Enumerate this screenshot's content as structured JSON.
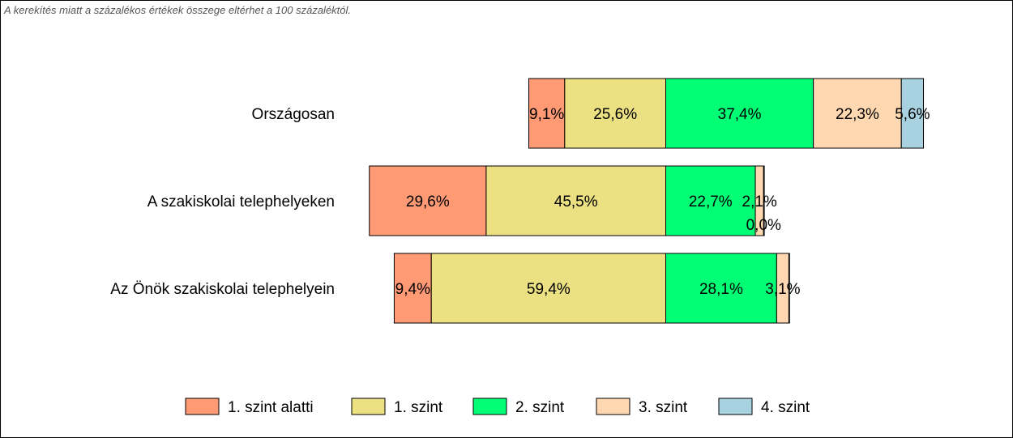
{
  "note": "A kerekítés miatt a  százalékos értékek összege eltérhet a 100 százaléktól.",
  "colors": {
    "segments": [
      "#FF9A75",
      "#EBE082",
      "#00FF74",
      "#FFD7B0",
      "#A8D2E0"
    ],
    "border": "#000000"
  },
  "chart_data": {
    "type": "bar",
    "orientation": "horizontal",
    "stacked": true,
    "centered": true,
    "title": "",
    "categories": [
      "Országosan",
      "A szakiskolai telephelyeken",
      "Az Önök szakiskolai telephelyein"
    ],
    "series": [
      {
        "name": "1. szint alatti",
        "values": [
          9.1,
          29.6,
          9.4
        ],
        "labels": [
          "9,1%",
          "29,6%",
          "9,4%"
        ]
      },
      {
        "name": "1. szint",
        "values": [
          25.6,
          45.5,
          59.4
        ],
        "labels": [
          "25,6%",
          "45,5%",
          "59,4%"
        ]
      },
      {
        "name": "2. szint",
        "values": [
          37.4,
          22.7,
          28.1
        ],
        "labels": [
          "37,4%",
          "22,7%",
          "28,1%"
        ]
      },
      {
        "name": "3. szint",
        "values": [
          22.3,
          2.1,
          3.1
        ],
        "labels": [
          "22,3%",
          "2,1%",
          "3,1%"
        ]
      },
      {
        "name": "4. szint",
        "values": [
          5.6,
          0.0,
          0.0
        ],
        "labels": [
          "5,6%",
          "0,0%",
          ""
        ]
      }
    ],
    "legend_position": "bottom"
  }
}
